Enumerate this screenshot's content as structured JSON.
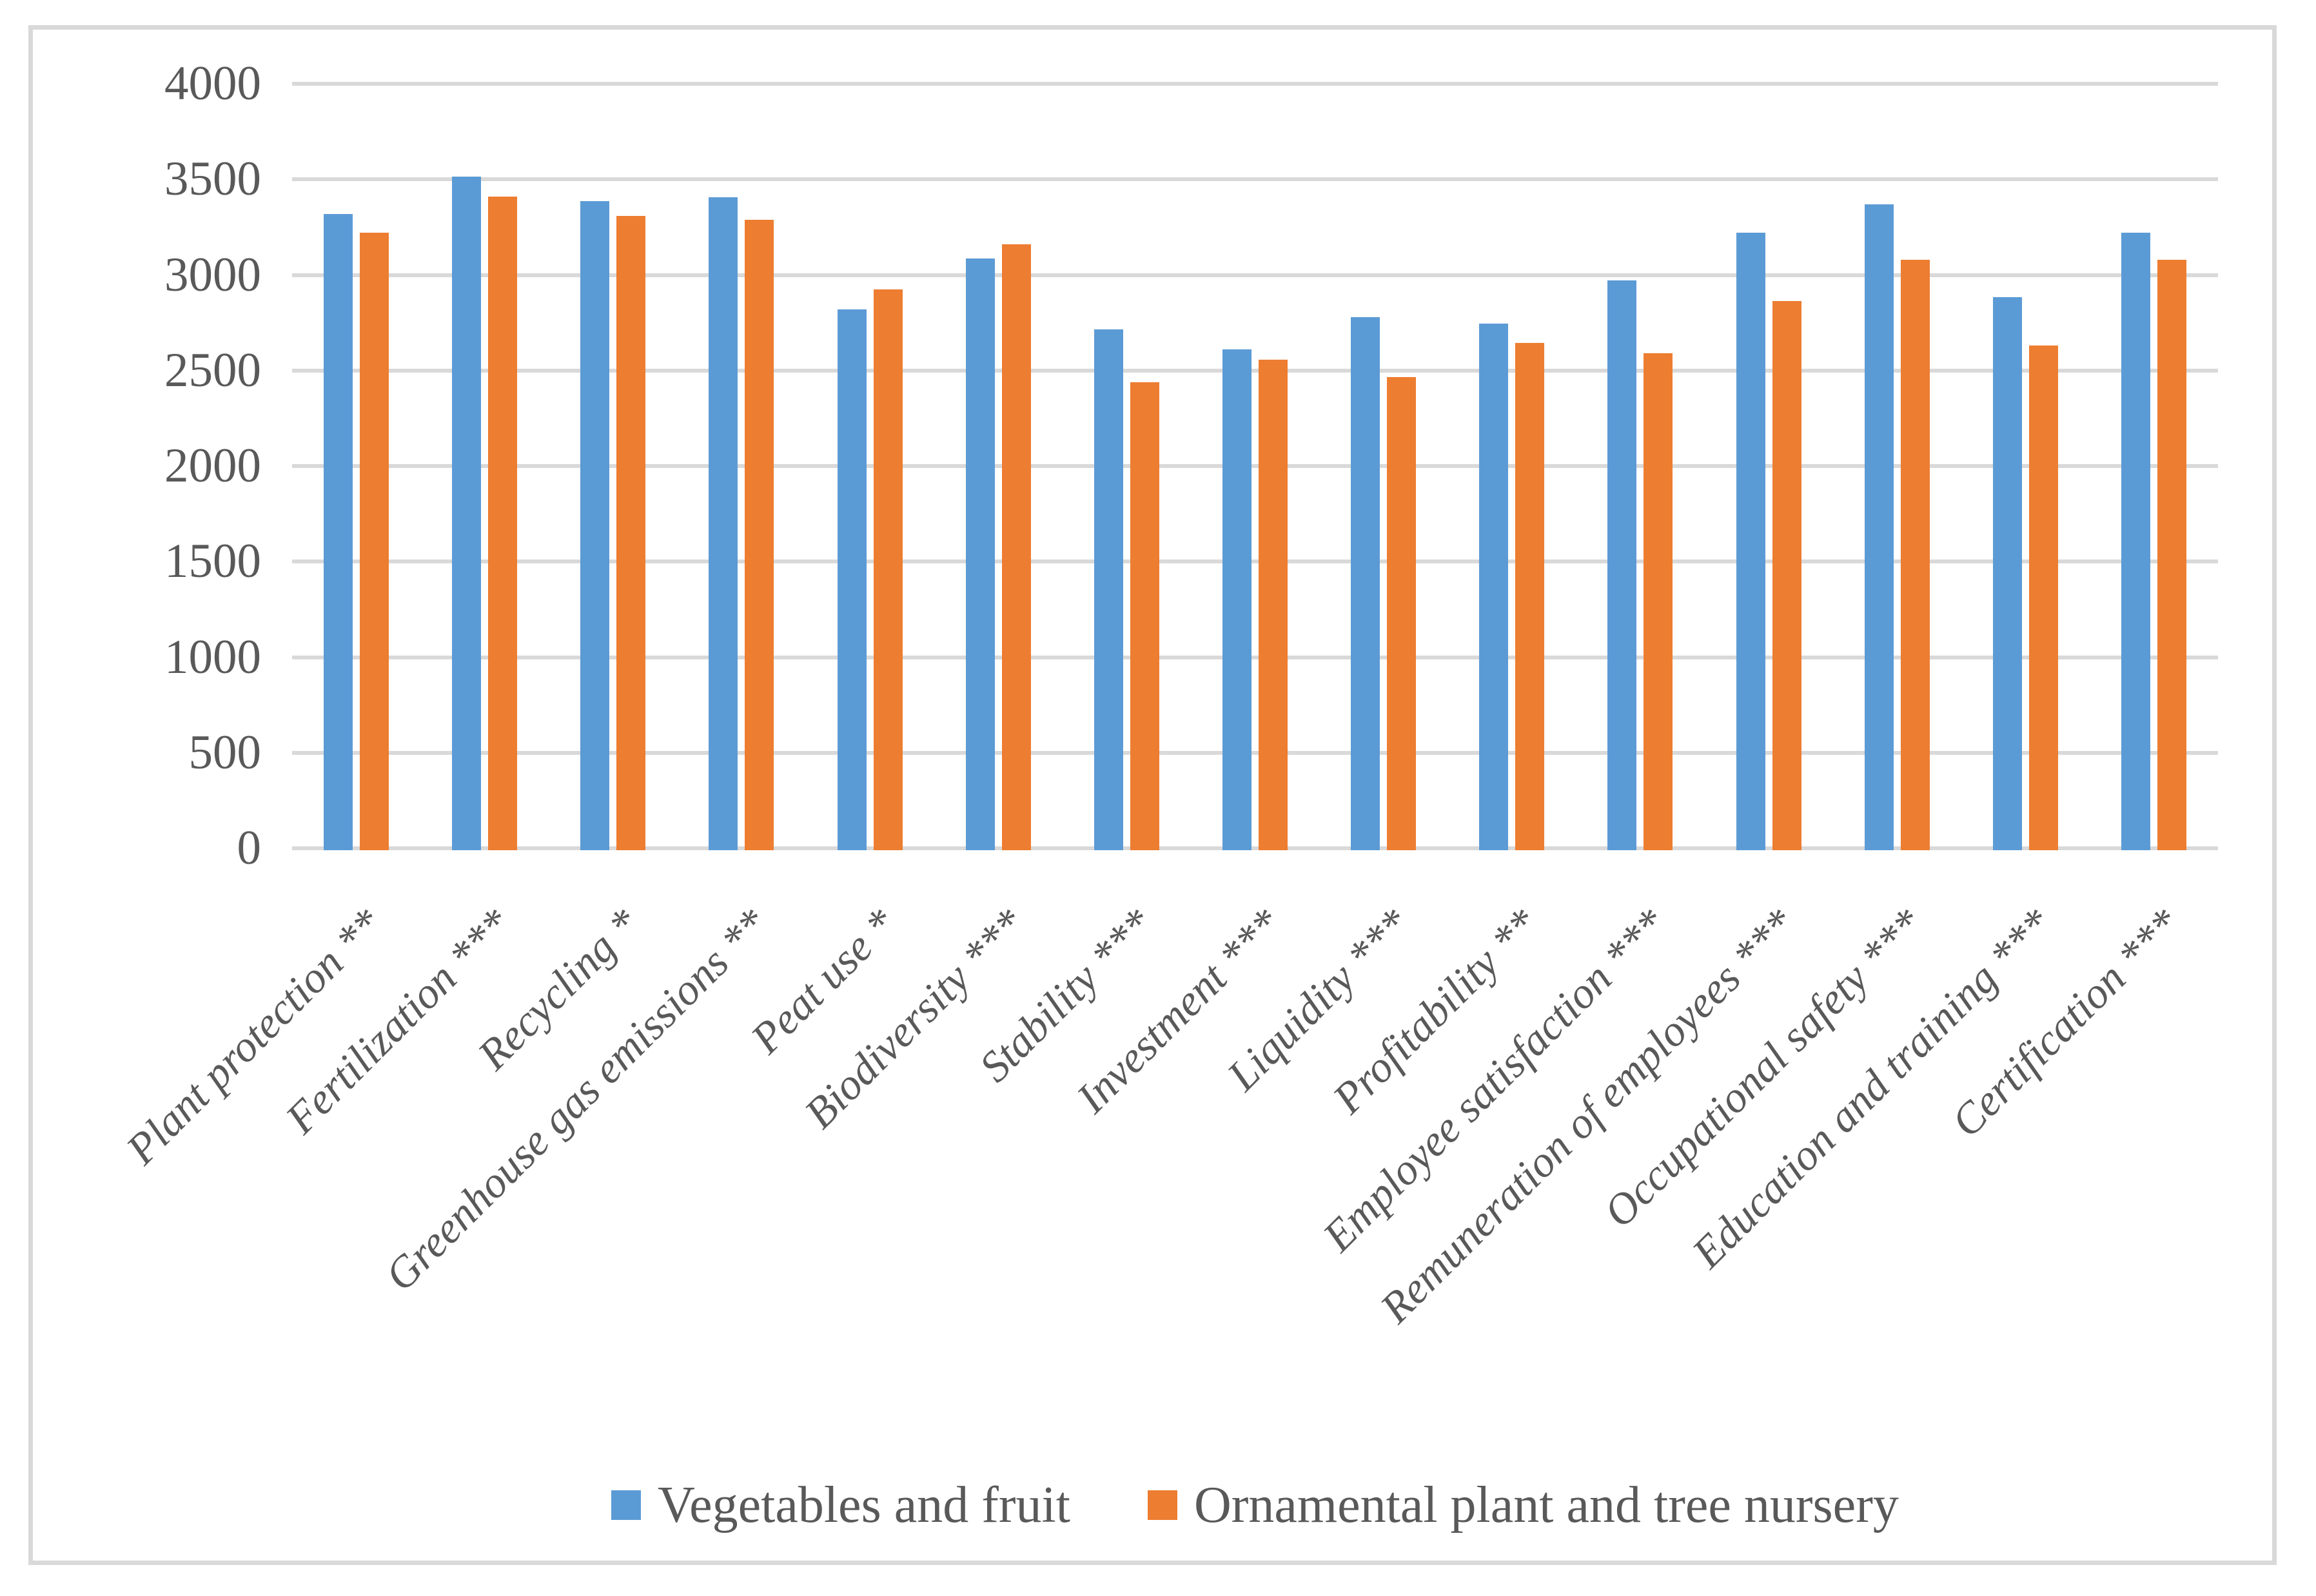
{
  "chart_data": {
    "type": "bar",
    "title": "",
    "xlabel": "",
    "ylabel": "",
    "categories": [
      "Plant protection **",
      "Fertilization ***",
      "Recycling *",
      "Greenhouse gas emissions **",
      "Peat use *",
      "Biodiversity ***",
      "Stability ***",
      "Investment ***",
      "Liquidity ***",
      "Profitability **",
      "Employee satisfaction ***",
      "Remuneration of employees ***",
      "Occupational safety ***",
      "Education and training ***",
      "Certification ***"
    ],
    "series": [
      {
        "name": "Vegetables and fruit",
        "color": "#5B9BD5",
        "values": [
          3330,
          3525,
          3395,
          3415,
          2830,
          3095,
          2725,
          2620,
          2790,
          2755,
          2980,
          3230,
          3380,
          2895,
          3230
        ]
      },
      {
        "name": "Ornamental plant and tree nursery",
        "color": "#ED7D31",
        "values": [
          3230,
          3420,
          3320,
          3300,
          2935,
          3170,
          2450,
          2565,
          2475,
          2655,
          2600,
          2875,
          3090,
          2640,
          3090
        ]
      }
    ],
    "ylim": [
      0,
      4000
    ],
    "ytick_step": 500,
    "ytick_labels": [
      "0",
      "500",
      "1000",
      "1500",
      "2000",
      "2500",
      "3000",
      "3500",
      "4000"
    ],
    "grid": true,
    "legend_position": "bottom",
    "colors": {
      "gridline": "#D9D9D9",
      "frame_border": "#D9D9D9",
      "axis_text": "#595959",
      "background": "#FFFFFF"
    }
  }
}
